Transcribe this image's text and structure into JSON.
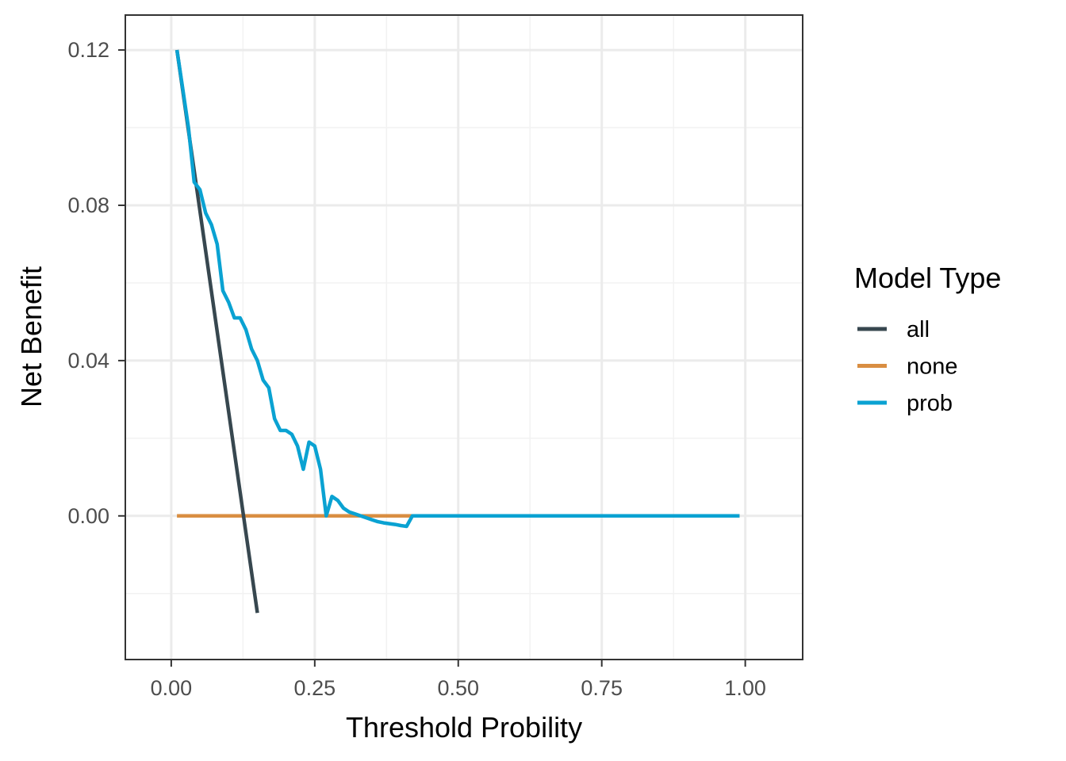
{
  "chart_data": {
    "type": "line",
    "title": "",
    "xlabel": "Threshold Probility",
    "ylabel": "Net Benefit",
    "xlim": [
      -0.08,
      1.1
    ],
    "ylim": [
      -0.037,
      0.129
    ],
    "x_ticks": [
      0,
      0.25,
      0.5,
      0.75,
      1
    ],
    "x_tick_labels": [
      "0.00",
      "0.25",
      "0.50",
      "0.75",
      "1.00"
    ],
    "y_ticks": [
      0,
      0.04,
      0.08,
      0.12
    ],
    "y_tick_labels": [
      "0.00",
      "0.04",
      "0.08",
      "0.12"
    ],
    "x_minor": [
      0.125,
      0.375,
      0.625,
      0.875
    ],
    "y_minor": [
      -0.02,
      0.02,
      0.06,
      0.1
    ],
    "grid": true,
    "legend": {
      "title": "Model Type",
      "position": "right"
    },
    "series": [
      {
        "name": "all",
        "color": "#37474f",
        "x": [
          0.01,
          0.15
        ],
        "y": [
          0.12,
          -0.025
        ]
      },
      {
        "name": "none",
        "color": "#d98e42",
        "x": [
          0.01,
          0.99
        ],
        "y": [
          0,
          0
        ]
      },
      {
        "name": "prob",
        "color": "#0aa2d2",
        "x": [
          0.01,
          0.02,
          0.03,
          0.04,
          0.05,
          0.06,
          0.07,
          0.08,
          0.09,
          0.1,
          0.11,
          0.12,
          0.13,
          0.14,
          0.15,
          0.16,
          0.17,
          0.18,
          0.19,
          0.2,
          0.21,
          0.22,
          0.23,
          0.24,
          0.25,
          0.26,
          0.27,
          0.28,
          0.29,
          0.3,
          0.31,
          0.32,
          0.33,
          0.34,
          0.35,
          0.36,
          0.37,
          0.38,
          0.39,
          0.4,
          0.41,
          0.42,
          0.43,
          0.5,
          0.6,
          0.7,
          0.8,
          0.9,
          0.99
        ],
        "y": [
          0.12,
          0.11,
          0.1,
          0.086,
          0.084,
          0.078,
          0.075,
          0.07,
          0.058,
          0.055,
          0.051,
          0.051,
          0.048,
          0.043,
          0.04,
          0.035,
          0.033,
          0.025,
          0.022,
          0.022,
          0.021,
          0.018,
          0.012,
          0.019,
          0.018,
          0.012,
          0.0,
          0.005,
          0.004,
          0.002,
          0.001,
          0.0005,
          0.0,
          -0.0005,
          -0.001,
          -0.0015,
          -0.0018,
          -0.002,
          -0.0022,
          -0.0025,
          -0.0027,
          0.0,
          0.0,
          0.0,
          0.0,
          0.0,
          0.0,
          0.0,
          0.0
        ]
      }
    ]
  }
}
